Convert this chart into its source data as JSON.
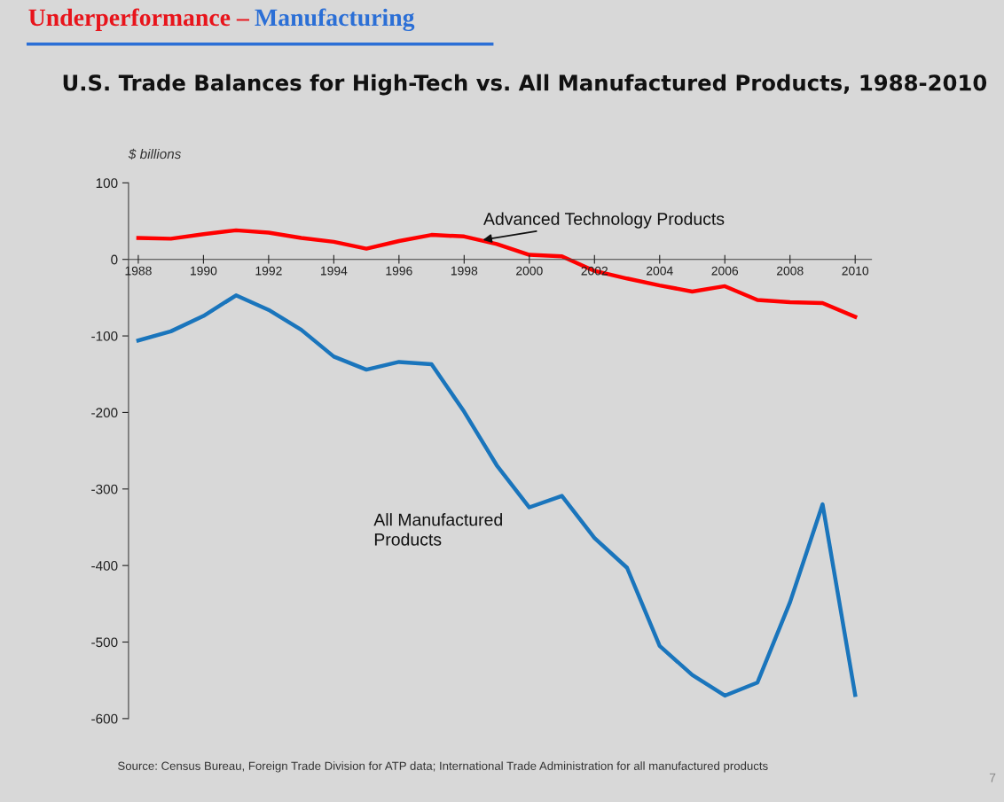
{
  "chart_data": {
    "type": "line",
    "title": "U.S. Trade Balances for High-Tech vs. All Manufactured Products, 1988-2010",
    "ylabel": "$ billions",
    "annotations": [
      "Underperformance –",
      "Manufacturing",
      "Source: Census Bureau, Foreign Trade Division for ATP data; International Trade Administration for all manufactured products",
      "7"
    ],
    "x": [
      1988,
      1989,
      1990,
      1991,
      1992,
      1993,
      1994,
      1995,
      1996,
      1997,
      1998,
      1999,
      2000,
      2001,
      2002,
      2003,
      2004,
      2005,
      2006,
      2007,
      2008,
      2009,
      2010
    ],
    "series": [
      {
        "name": "Advanced Technology Products",
        "color": "#ff0000",
        "values": [
          28,
          27,
          33,
          38,
          35,
          28,
          23,
          14,
          24,
          32,
          30,
          20,
          6,
          4,
          -15,
          -25,
          -34,
          -42,
          -35,
          -53,
          -56,
          -57,
          -75
        ]
      },
      {
        "name": "All Manufactured\nProducts",
        "color": "#1a75bc",
        "values": [
          -106,
          -94,
          -74,
          -47,
          -66,
          -92,
          -127,
          -144,
          -134,
          -137,
          -199,
          -269,
          -324,
          -309,
          -364,
          -403,
          -505,
          -543,
          -570,
          -553,
          -448,
          -320,
          -569
        ]
      }
    ],
    "xlim": [
      1987.7,
      2010.5
    ],
    "xticks": [
      1988,
      1990,
      1992,
      1994,
      1996,
      1998,
      2000,
      2002,
      2004,
      2006,
      2008,
      2010
    ],
    "ylim": [
      -600,
      100
    ],
    "yticks": [
      100,
      0,
      {
        "value": -100,
        "label": "-100"
      },
      {
        "value": -200,
        "label": "-200"
      },
      {
        "value": -300,
        "label": "-300"
      },
      {
        "value": -400,
        "label": "-400"
      },
      {
        "value": -500,
        "label": "-500"
      },
      {
        "value": -600,
        "label": "-600"
      }
    ],
    "grid": false,
    "legend": false,
    "marker": "none",
    "line_style": "solid"
  }
}
